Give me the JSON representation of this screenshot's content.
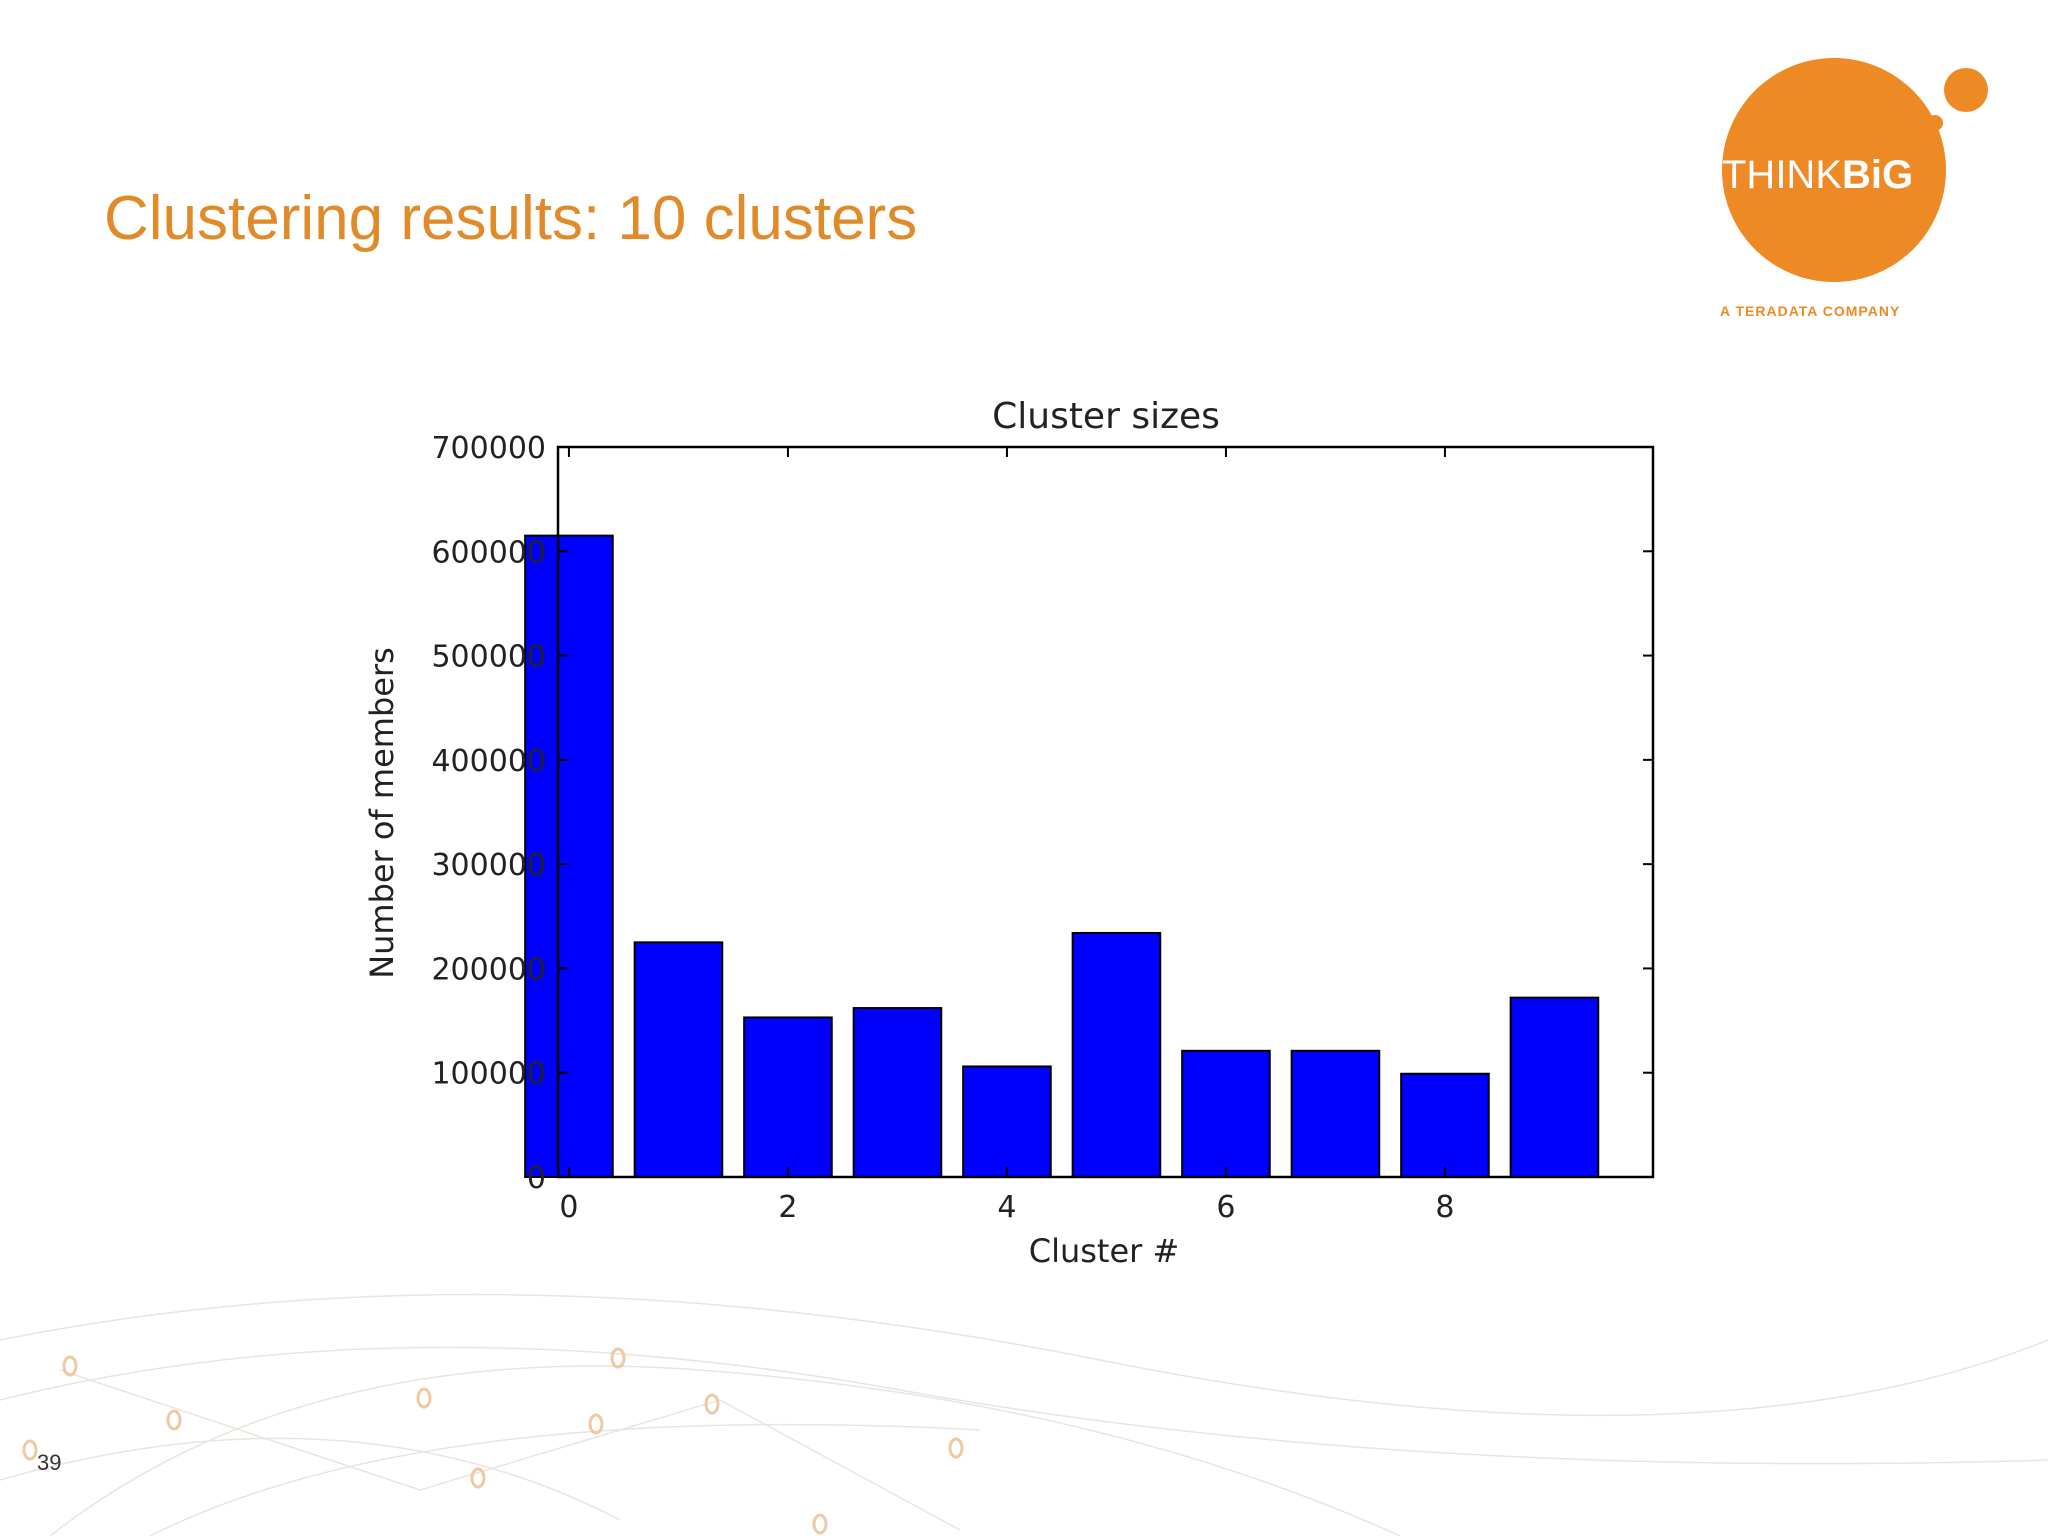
{
  "slide": {
    "title": "Clustering results: 10 clusters",
    "page_number": "39"
  },
  "logo": {
    "brand_light": "THINK",
    "brand_bold": "BiG",
    "tagline": "A TERADATA COMPANY",
    "color": "#ee8a26"
  },
  "chart_data": {
    "type": "bar",
    "title": "Cluster sizes",
    "xlabel": "Cluster #",
    "ylabel": "Number of members",
    "x": [
      0,
      1,
      2,
      3,
      4,
      5,
      6,
      7,
      8,
      9
    ],
    "values": [
      615000,
      225000,
      153000,
      162000,
      106000,
      234000,
      121000,
      121000,
      99000,
      172000
    ],
    "ylim": [
      0,
      700000
    ],
    "xlim": [
      -0.1,
      9.9
    ],
    "bar_width": 0.8,
    "xticks": [
      0,
      2,
      4,
      6,
      8
    ],
    "xtick_labels": [
      "0",
      "2",
      "4",
      "6",
      "8"
    ],
    "yticks": [
      0,
      100000,
      200000,
      300000,
      400000,
      500000,
      600000,
      700000
    ],
    "ytick_labels": [
      "0",
      "100000",
      "200000",
      "300000",
      "400000",
      "500000",
      "600000",
      "700000"
    ],
    "bar_color": "#0000ff",
    "grid": false,
    "legend": "none"
  }
}
